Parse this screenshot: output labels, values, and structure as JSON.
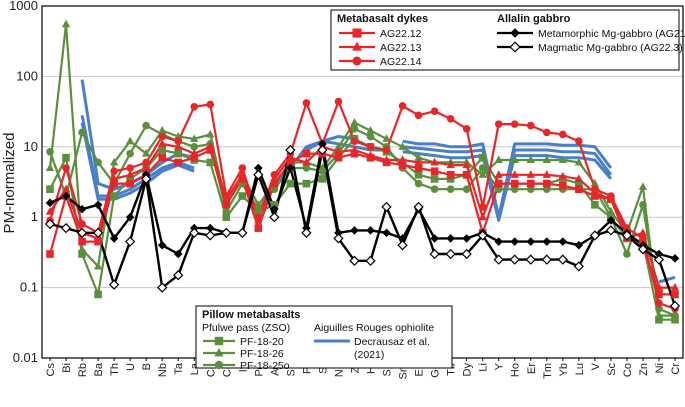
{
  "chart_data": {
    "type": "line",
    "yscale": "log",
    "ylabel": "PM-normalized",
    "ylim": [
      0.01,
      1000
    ],
    "yticks": [
      "0.01",
      "0.1",
      "1",
      "10",
      "100",
      "1000"
    ],
    "categories": [
      "Cs",
      "Bi",
      "Rb",
      "Ba",
      "Th",
      "U",
      "B",
      "Nb",
      "Ta",
      "La",
      "Ce",
      "Cd",
      "In",
      "Pb",
      "As",
      "Sb",
      "Pr",
      "Sr",
      "Nd",
      "Zr",
      "Hf",
      "Sn",
      "Sm",
      "Eu",
      "Gd",
      "Tb",
      "Dy",
      "Li",
      "Y",
      "Ho",
      "Er",
      "Tm",
      "Yb",
      "Lu",
      "V",
      "Sc",
      "Co",
      "Zn",
      "Ni",
      "Cr"
    ],
    "series": [
      {
        "key": "ag2212",
        "name": "AG22.12",
        "color": "#e8262a",
        "marker": "square",
        "values": [
          0.3,
          2.0,
          0.45,
          0.45,
          3.0,
          3.0,
          4.0,
          7.0,
          6.0,
          7.0,
          9.0,
          1.5,
          3.5,
          0.7,
          3.0,
          6.0,
          8.0,
          8.0,
          7.0,
          8.0,
          7.0,
          6.0,
          5.5,
          5.0,
          4.5,
          4.0,
          4.0,
          0.6,
          3.0,
          3.0,
          3.0,
          3.0,
          2.8,
          2.5,
          2.0,
          1.8,
          0.6,
          0.4,
          0.08,
          0.08
        ]
      },
      {
        "key": "ag2213",
        "name": "AG22.13",
        "color": "#e8262a",
        "marker": "triangle",
        "values": [
          1.2,
          2.5,
          0.6,
          0.5,
          3.5,
          4.0,
          5.0,
          11.0,
          10.0,
          8.0,
          10.0,
          1.8,
          4.0,
          0.9,
          3.5,
          7.0,
          6.0,
          10.0,
          8.5,
          9.0,
          7.5,
          6.5,
          6.5,
          6.0,
          6.0,
          5.5,
          5.5,
          1.0,
          4.0,
          4.0,
          4.0,
          4.0,
          3.8,
          3.5,
          2.2,
          1.8,
          0.5,
          0.6,
          0.1,
          0.1
        ]
      },
      {
        "key": "ag2214",
        "name": "AG22.14",
        "color": "#e8262a",
        "marker": "circle",
        "values": [
          0.9,
          5.0,
          0.8,
          0.6,
          4.5,
          5.0,
          6.0,
          14.0,
          12.0,
          37.0,
          40.0,
          2.0,
          5.0,
          1.0,
          4.0,
          8.0,
          42.0,
          11.0,
          44.0,
          12.0,
          10.0,
          9.0,
          38.0,
          28.0,
          32.0,
          25.0,
          18.0,
          1.4,
          21.0,
          21.0,
          20.0,
          16.0,
          15.0,
          12.0,
          2.5,
          2.0,
          0.7,
          0.5,
          0.06,
          0.05
        ]
      },
      {
        "key": "ag215",
        "name": "Metamorphic Mg-gabbro (AG21.5)",
        "color": "#000000",
        "marker": "diamond",
        "values": [
          1.6,
          2.0,
          1.3,
          1.5,
          0.5,
          1.0,
          4.0,
          0.4,
          0.3,
          0.7,
          0.7,
          0.6,
          0.6,
          5.0,
          1.3,
          5.0,
          0.7,
          11.0,
          0.6,
          0.65,
          0.65,
          0.6,
          0.5,
          1.3,
          0.5,
          0.5,
          0.5,
          0.6,
          0.45,
          0.45,
          0.45,
          0.45,
          0.45,
          0.4,
          0.55,
          0.9,
          0.6,
          0.4,
          0.3,
          0.26
        ]
      },
      {
        "key": "ag223",
        "name": "Magmatic Mg-gabbro (AG22.3)",
        "color": "#000000",
        "marker": "diamond-open",
        "values": [
          0.8,
          0.7,
          0.6,
          0.6,
          0.11,
          0.45,
          3.5,
          0.1,
          0.15,
          0.6,
          0.55,
          0.6,
          0.6,
          4.0,
          1.0,
          9.0,
          0.6,
          9.0,
          0.5,
          0.24,
          0.24,
          1.4,
          0.4,
          1.4,
          0.3,
          0.3,
          0.3,
          0.55,
          0.25,
          0.25,
          0.25,
          0.25,
          0.25,
          0.2,
          0.55,
          0.65,
          0.55,
          0.35,
          0.25,
          0.055
        ]
      },
      {
        "key": "pf1820",
        "name": "PF-18-20",
        "color": "#5a8f3c",
        "marker": "square",
        "values": [
          2.5,
          7.0,
          0.3,
          0.08,
          2.0,
          3.5,
          5.0,
          9.0,
          8.0,
          6.5,
          6.0,
          1.0,
          2.0,
          1.2,
          1.5,
          3.0,
          3.0,
          3.5,
          7.0,
          13.0,
          10.0,
          8.5,
          6.0,
          4.0,
          3.5,
          3.5,
          4.0,
          7.0,
          3.0,
          3.0,
          3.0,
          3.0,
          3.5,
          3.0,
          1.5,
          1.0,
          0.5,
          0.45,
          0.035,
          0.035
        ]
      },
      {
        "key": "pf1826",
        "name": "PF-18-26",
        "color": "#5a8f3c",
        "marker": "triangle",
        "values": [
          5.0,
          550.0,
          0.35,
          0.2,
          6.0,
          12.0,
          8.0,
          17.0,
          14.0,
          13.0,
          15.0,
          1.5,
          4.0,
          1.5,
          3.0,
          6.0,
          6.0,
          5.0,
          10.0,
          22.0,
          17.0,
          13.0,
          10.0,
          7.0,
          6.0,
          6.0,
          6.0,
          4.0,
          6.5,
          6.5,
          6.5,
          6.5,
          6.5,
          6.0,
          3.0,
          1.2,
          0.6,
          2.7,
          0.04,
          0.04
        ]
      },
      {
        "key": "pf1825o",
        "name": "PF-18-25o",
        "color": "#5a8f3c",
        "marker": "circle",
        "values": [
          8.5,
          2.0,
          16.0,
          6.0,
          3.0,
          8.0,
          20.0,
          15.0,
          12.0,
          10.0,
          11.0,
          1.2,
          3.0,
          1.3,
          2.5,
          5.0,
          5.0,
          4.5,
          8.0,
          18.0,
          14.0,
          10.0,
          5.0,
          3.0,
          2.5,
          2.5,
          2.5,
          5.0,
          2.5,
          2.5,
          2.5,
          2.5,
          2.5,
          2.5,
          2.5,
          1.0,
          0.3,
          1.5,
          0.05,
          0.04
        ]
      }
    ],
    "reference_lines": {
      "name": "Decrausaz et al. (2021)",
      "color": "#4a7fc8",
      "segments": [
        {
          "start": "Rb",
          "values": [
            90,
            3.0,
            2.5,
            3.0,
            4.0,
            6.0,
            8.0,
            7.0
          ]
        },
        {
          "start": "Rb",
          "values": [
            28,
            2.0,
            2.0,
            2.5,
            3.5,
            5.0,
            6.0,
            5.0
          ]
        },
        {
          "start": "Rb",
          "values": [
            22,
            1.8,
            1.8,
            2.2,
            3.0,
            4.5,
            5.5,
            4.5
          ]
        },
        {
          "start": "Pb",
          "values": [
            1.2,
            3,
            5,
            10,
            12,
            14,
            13
          ]
        },
        {
          "start": "Pr",
          "values": [
            9,
            12,
            11,
            10,
            9,
            9
          ]
        },
        {
          "start": "Sm",
          "values": [
            12,
            11,
            11,
            10,
            10,
            11,
            1.0,
            11,
            11,
            11,
            10.5,
            10.5,
            10,
            5.0
          ]
        },
        {
          "start": "Sm",
          "values": [
            10,
            9.5,
            9.0,
            8.5,
            8.5,
            9.0,
            1.0,
            9.0,
            9.0,
            9.0,
            8.5,
            8.5,
            8.0,
            4.0
          ]
        },
        {
          "start": "Sm",
          "values": [
            8.5,
            8.0,
            7.5,
            7.0,
            7.0,
            7.5,
            0.9,
            7.5,
            7.5,
            7.5,
            7.0,
            7.0,
            6.5,
            3.5
          ]
        },
        {
          "start": "Ni",
          "values": [
            0.12,
            0.14
          ]
        }
      ]
    },
    "legend_groups": [
      {
        "title": "Metabasalt dykes",
        "position": "top-center",
        "items": [
          "AG22.12",
          "AG22.13",
          "AG22.14"
        ]
      },
      {
        "title": "Allalin gabbro",
        "position": "top-right",
        "items": [
          "Metamorphic Mg-gabbro (AG21.5)",
          "Magmatic Mg-gabbro (AG22.3)"
        ]
      },
      {
        "title": "Pillow metabasalts",
        "position": "bottom-center",
        "subtitle": "Pfulwe pass (ZSO)",
        "items": [
          "PF-18-20",
          "PF-18-26",
          "PF-18-25o"
        ]
      },
      {
        "subtitle": "Aiguilles Rouges ophiolite",
        "position": "bottom-center",
        "items": [
          "Decrausaz et al. (2021)"
        ]
      }
    ]
  }
}
